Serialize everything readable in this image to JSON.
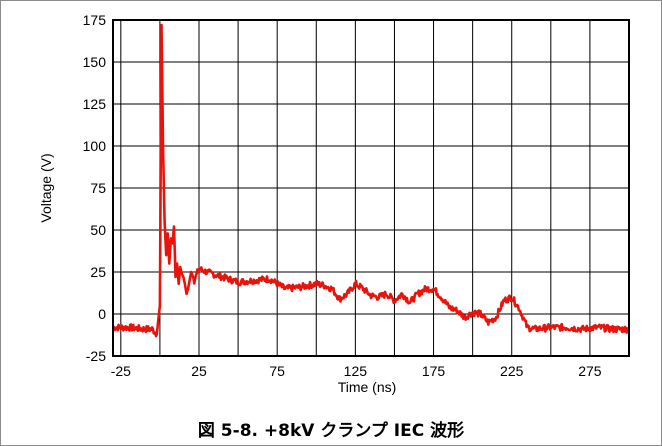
{
  "caption": "図 5-8. +8kV クランプ IEC 波形",
  "chart_data": {
    "type": "line",
    "xlabel": "Time (ns)",
    "ylabel": "Voltage (V)",
    "xlim": [
      -30,
      300
    ],
    "ylim": [
      -25,
      175
    ],
    "xticks": [
      -25,
      25,
      75,
      125,
      175,
      225,
      275
    ],
    "yticks": [
      -25,
      0,
      25,
      50,
      75,
      100,
      125,
      150,
      175
    ],
    "x_gridlines": [
      -25,
      0,
      25,
      50,
      75,
      100,
      125,
      150,
      175,
      200,
      225,
      250,
      275
    ],
    "grid": true,
    "legend": "none",
    "series": [
      {
        "color": "#e8140c",
        "x": [
          -30,
          -20,
          -10,
          -5,
          -2,
          0,
          1,
          2,
          3,
          4,
          5,
          6,
          7,
          8,
          9,
          10,
          11,
          12,
          13,
          14,
          15,
          16,
          17,
          18,
          20,
          22,
          25,
          30,
          40,
          50,
          60,
          70,
          80,
          90,
          100,
          105,
          110,
          115,
          120,
          125,
          130,
          135,
          140,
          145,
          150,
          155,
          160,
          165,
          170,
          175,
          180,
          185,
          190,
          195,
          200,
          205,
          210,
          215,
          220,
          225,
          230,
          235,
          240,
          250,
          260,
          270,
          280,
          290,
          300
        ],
        "y": [
          -8,
          -8,
          -9,
          -9,
          -12,
          5,
          172,
          100,
          55,
          35,
          48,
          30,
          45,
          42,
          52,
          22,
          30,
          18,
          28,
          24,
          22,
          18,
          12,
          15,
          25,
          20,
          27,
          25,
          22,
          19,
          20,
          21,
          15,
          16,
          18,
          17,
          15,
          9,
          12,
          18,
          15,
          11,
          10,
          12,
          8,
          12,
          7,
          12,
          15,
          15,
          10,
          4,
          2,
          -2,
          1,
          0,
          -5,
          -2,
          8,
          10,
          3,
          -8,
          -9,
          -8,
          -8,
          -9,
          -8,
          -9,
          -9
        ]
      }
    ]
  }
}
